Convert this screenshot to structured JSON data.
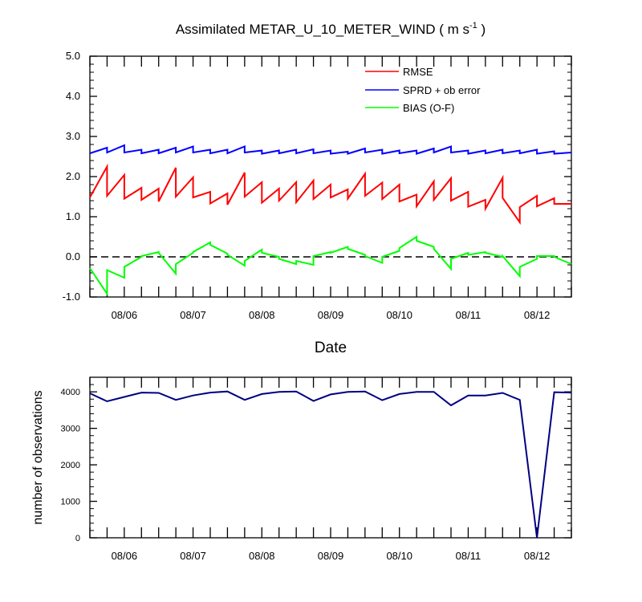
{
  "chart_data": [
    {
      "type": "line",
      "title": "Assimilated METAR_U_10_METER_WIND ( m s",
      "title_superscript": "-1",
      "title_suffix": " )",
      "xlabel": "Date",
      "ylabel": "",
      "xlim": [
        0,
        35
      ],
      "ylim": [
        -1.0,
        5.0
      ],
      "yticks": [
        "-1.0",
        "0.0",
        "1.0",
        "2.0",
        "3.0",
        "4.0",
        "5.0"
      ],
      "x_tick_labels": [
        {
          "x": 2.5,
          "label": "08/06"
        },
        {
          "x": 7.5,
          "label": "08/07"
        },
        {
          "x": 12.5,
          "label": "08/08"
        },
        {
          "x": 17.5,
          "label": "08/09"
        },
        {
          "x": 22.5,
          "label": "08/10"
        },
        {
          "x": 27.5,
          "label": "08/11"
        },
        {
          "x": 32.5,
          "label": "08/12"
        }
      ],
      "zero_line": 0.0,
      "legend_position": "top-right",
      "series": [
        {
          "name": "RMSE",
          "color": "#ff0000",
          "x": [
            0,
            1.25,
            1.25,
            2.5,
            2.5,
            3.75,
            3.75,
            5,
            5,
            6.25,
            6.25,
            7.5,
            7.5,
            8.75,
            8.75,
            10,
            10,
            11.25,
            11.25,
            12.5,
            12.5,
            13.75,
            13.75,
            15,
            15,
            16.25,
            16.25,
            17.5,
            17.5,
            18.75,
            18.75,
            20,
            20,
            21.25,
            21.25,
            22.5,
            22.5,
            23.75,
            23.75,
            25,
            25,
            26.25,
            26.25,
            27.5,
            27.5,
            28.75,
            28.75,
            30,
            30,
            31.25,
            31.25,
            32.5,
            32.5,
            33.75,
            33.75,
            35
          ],
          "y": [
            1.48,
            2.25,
            1.52,
            2.04,
            1.45,
            1.72,
            1.42,
            1.7,
            1.38,
            2.22,
            1.5,
            1.98,
            1.48,
            1.62,
            1.33,
            1.58,
            1.3,
            2.1,
            1.5,
            1.86,
            1.35,
            1.7,
            1.4,
            1.86,
            1.36,
            1.9,
            1.44,
            1.8,
            1.48,
            1.68,
            1.45,
            2.07,
            1.52,
            1.85,
            1.44,
            1.8,
            1.38,
            1.55,
            1.26,
            1.88,
            1.42,
            1.96,
            1.4,
            1.62,
            1.25,
            1.42,
            1.2,
            1.97,
            1.47,
            0.86,
            1.24,
            1.52,
            1.26,
            1.46,
            1.32,
            1.32
          ]
        },
        {
          "name": "SPRD + ob error",
          "color": "#0000ff",
          "x": [
            0,
            1.25,
            1.25,
            2.5,
            2.5,
            3.75,
            3.75,
            5,
            5,
            6.25,
            6.25,
            7.5,
            7.5,
            8.75,
            8.75,
            10,
            10,
            11.25,
            11.25,
            12.5,
            12.5,
            13.75,
            13.75,
            15,
            15,
            16.25,
            16.25,
            17.5,
            17.5,
            18.75,
            18.75,
            20,
            20,
            21.25,
            21.25,
            22.5,
            22.5,
            23.75,
            23.75,
            25,
            25,
            26.25,
            26.25,
            27.5,
            27.5,
            28.75,
            28.75,
            30,
            30,
            31.25,
            31.25,
            32.5,
            32.5,
            33.75,
            33.75,
            35
          ],
          "y": [
            2.58,
            2.72,
            2.6,
            2.78,
            2.6,
            2.67,
            2.58,
            2.67,
            2.58,
            2.72,
            2.6,
            2.75,
            2.6,
            2.67,
            2.58,
            2.67,
            2.58,
            2.75,
            2.6,
            2.65,
            2.57,
            2.65,
            2.58,
            2.67,
            2.58,
            2.68,
            2.58,
            2.65,
            2.57,
            2.62,
            2.57,
            2.7,
            2.6,
            2.67,
            2.57,
            2.65,
            2.58,
            2.65,
            2.57,
            2.7,
            2.6,
            2.75,
            2.6,
            2.65,
            2.57,
            2.65,
            2.58,
            2.67,
            2.58,
            2.65,
            2.58,
            2.67,
            2.57,
            2.63,
            2.57,
            2.6
          ]
        },
        {
          "name": "BIAS (O-F)",
          "color": "#00ff00",
          "x": [
            0,
            1.25,
            1.25,
            2.5,
            2.5,
            3.75,
            3.75,
            5,
            5,
            6.25,
            6.25,
            7.5,
            7.5,
            8.75,
            8.75,
            10,
            10,
            11.25,
            11.25,
            12.5,
            12.5,
            13.75,
            13.75,
            15,
            15,
            16.25,
            16.25,
            17.5,
            17.5,
            18.75,
            18.75,
            20,
            20,
            21.25,
            21.25,
            22.5,
            22.5,
            23.75,
            23.75,
            25,
            25,
            26.25,
            26.25,
            27.5,
            27.5,
            28.75,
            28.75,
            30,
            30,
            31.25,
            31.25,
            32.5,
            32.5,
            33.75,
            33.75,
            35
          ],
          "y": [
            -0.28,
            -0.92,
            -0.33,
            -0.52,
            -0.25,
            0.0,
            0.02,
            0.12,
            0.1,
            -0.42,
            -0.18,
            0.1,
            0.12,
            0.36,
            0.3,
            0.08,
            0.05,
            -0.22,
            -0.1,
            0.18,
            0.1,
            0.0,
            -0.05,
            -0.18,
            -0.1,
            -0.2,
            0.02,
            0.12,
            0.1,
            0.25,
            0.2,
            0.05,
            0.02,
            -0.15,
            0.0,
            0.15,
            0.22,
            0.5,
            0.4,
            0.25,
            0.2,
            -0.3,
            -0.05,
            0.1,
            0.05,
            0.12,
            0.1,
            0.0,
            0.02,
            -0.48,
            -0.25,
            -0.05,
            0.02,
            0.02,
            0.0,
            -0.18
          ]
        }
      ]
    },
    {
      "type": "line",
      "title": "",
      "xlabel": "",
      "ylabel": "number of observations",
      "xlim": [
        0,
        35
      ],
      "ylim": [
        0,
        4400
      ],
      "yticks": [
        "0",
        "1000",
        "2000",
        "3000",
        "4000"
      ],
      "x_tick_labels": [
        {
          "x": 2.5,
          "label": "08/06"
        },
        {
          "x": 7.5,
          "label": "08/07"
        },
        {
          "x": 12.5,
          "label": "08/08"
        },
        {
          "x": 17.5,
          "label": "08/09"
        },
        {
          "x": 22.5,
          "label": "08/10"
        },
        {
          "x": 27.5,
          "label": "08/11"
        },
        {
          "x": 32.5,
          "label": "08/12"
        }
      ],
      "series": [
        {
          "name": "observations",
          "color": "#000080",
          "x": [
            0,
            1.25,
            2.5,
            3.75,
            5,
            6.25,
            7.5,
            8.75,
            10,
            11.25,
            12.5,
            13.75,
            15,
            16.25,
            17.5,
            18.75,
            20,
            21.25,
            22.5,
            23.75,
            25,
            26.25,
            27.5,
            28.75,
            30,
            31.25,
            32.5,
            33.75,
            35
          ],
          "y": [
            3960,
            3740,
            3860,
            3980,
            3970,
            3780,
            3900,
            3980,
            4010,
            3780,
            3940,
            4000,
            4010,
            3750,
            3930,
            4000,
            4010,
            3770,
            3940,
            4000,
            4000,
            3630,
            3900,
            3900,
            3970,
            3780,
            0,
            3990,
            3980
          ]
        }
      ]
    }
  ]
}
